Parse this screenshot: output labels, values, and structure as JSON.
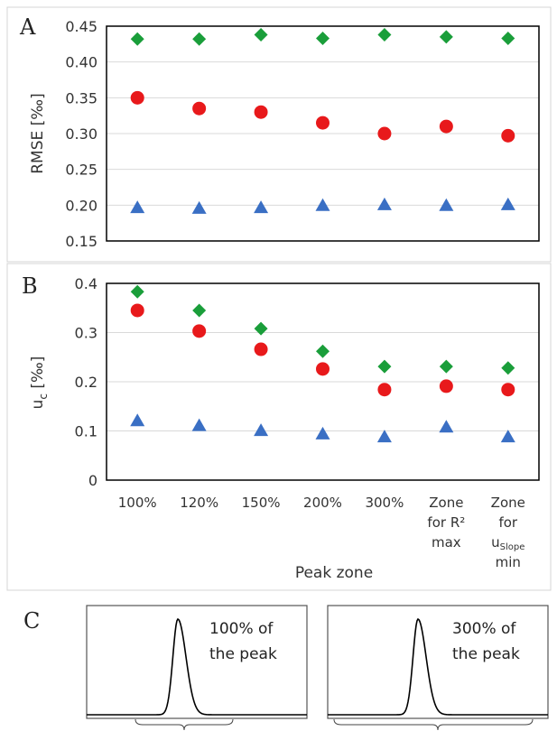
{
  "panels": [
    {
      "letter": "A"
    },
    {
      "letter": "B"
    },
    {
      "letter": "C"
    }
  ],
  "chart_data": [
    {
      "type": "scatter",
      "panel": "A",
      "ylabel": "RMSE [‰]",
      "ylim": [
        0.15,
        0.45
      ],
      "yticks": [
        "0.15",
        "0.20",
        "0.25",
        "0.30",
        "0.35",
        "0.40",
        "0.45"
      ],
      "grid": true,
      "categories": [
        "100%",
        "120%",
        "150%",
        "200%",
        "300%",
        "Zone for R² max",
        "Zone for uSlope min"
      ],
      "series": [
        {
          "marker": "diamond",
          "color": "#1a9e3a",
          "values": [
            0.432,
            0.432,
            0.438,
            0.433,
            0.438,
            0.435,
            0.433
          ]
        },
        {
          "marker": "circle",
          "color": "#e8191b",
          "values": [
            0.35,
            0.335,
            0.33,
            0.315,
            0.3,
            0.31,
            0.297
          ]
        },
        {
          "marker": "triangle",
          "color": "#3a6fc4",
          "values": [
            0.196,
            0.195,
            0.196,
            0.199,
            0.2,
            0.199,
            0.2
          ]
        }
      ]
    },
    {
      "type": "scatter",
      "panel": "B",
      "ylabel": "u",
      "ylabel_sub": "c",
      "ylabel_unit": " [‰]",
      "ylim": [
        0,
        0.4
      ],
      "yticks": [
        "0",
        "0.1",
        "0.2",
        "0.3",
        "0.4"
      ],
      "grid": true,
      "xlabel": "Peak zone",
      "categories": [
        {
          "lines": [
            "100%"
          ]
        },
        {
          "lines": [
            "120%"
          ]
        },
        {
          "lines": [
            "150%"
          ]
        },
        {
          "lines": [
            "200%"
          ]
        },
        {
          "lines": [
            "300%"
          ]
        },
        {
          "lines": [
            "Zone",
            "for R²",
            "max"
          ]
        },
        {
          "lines": [
            "Zone",
            "for",
            "u",
            "min"
          ],
          "sub": "Slope"
        }
      ],
      "series": [
        {
          "marker": "diamond",
          "color": "#1a9e3a",
          "values": [
            0.383,
            0.345,
            0.308,
            0.262,
            0.231,
            0.231,
            0.228
          ]
        },
        {
          "marker": "circle",
          "color": "#e8191b",
          "values": [
            0.345,
            0.303,
            0.266,
            0.226,
            0.184,
            0.191,
            0.184
          ]
        },
        {
          "marker": "triangle",
          "color": "#3a6fc4",
          "values": [
            0.12,
            0.11,
            0.1,
            0.093,
            0.087,
            0.107,
            0.087
          ]
        }
      ]
    }
  ],
  "peak_diagrams": [
    {
      "line1": "100% of",
      "line2": "the peak",
      "zone_percent": 100
    },
    {
      "line1": "300% of",
      "line2": "the peak",
      "zone_percent": 300
    }
  ]
}
